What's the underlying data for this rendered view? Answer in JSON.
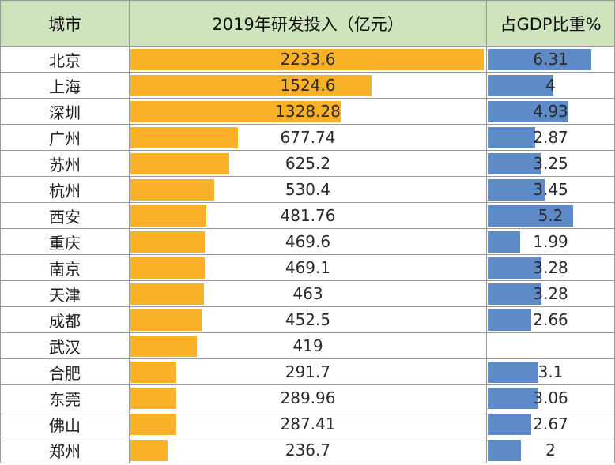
{
  "header": {
    "city": "城市",
    "rd": "2019年研发投入（亿元）",
    "gdp": "占GDP比重%"
  },
  "colors": {
    "header_bg": "#cfe3bd",
    "rd_bar": "#fbb127",
    "gdp_bar": "#5e8ac8"
  },
  "chart_data": {
    "type": "table",
    "columns": [
      "城市",
      "2019年研发投入（亿元）",
      "占GDP比重%"
    ],
    "rd_max": 2233.6,
    "gdp_max": 6.31,
    "rows": [
      {
        "city": "北京",
        "rd": "2233.6",
        "gdp": "6.31"
      },
      {
        "city": "上海",
        "rd": "1524.6",
        "gdp": "4"
      },
      {
        "city": "深圳",
        "rd": "1328.28",
        "gdp": "4.93"
      },
      {
        "city": "广州",
        "rd": "677.74",
        "gdp": "2.87"
      },
      {
        "city": "苏州",
        "rd": "625.2",
        "gdp": "3.25"
      },
      {
        "city": "杭州",
        "rd": "530.4",
        "gdp": "3.45"
      },
      {
        "city": "西安",
        "rd": "481.76",
        "gdp": "5.2"
      },
      {
        "city": "重庆",
        "rd": "469.6",
        "gdp": "1.99"
      },
      {
        "city": "南京",
        "rd": "469.1",
        "gdp": "3.28"
      },
      {
        "city": "天津",
        "rd": "463",
        "gdp": "3.28"
      },
      {
        "city": "成都",
        "rd": "452.5",
        "gdp": "2.66"
      },
      {
        "city": "武汉",
        "rd": "419",
        "gdp": ""
      },
      {
        "city": "合肥",
        "rd": "291.7",
        "gdp": "3.1"
      },
      {
        "city": "东莞",
        "rd": "289.96",
        "gdp": "3.06"
      },
      {
        "city": "佛山",
        "rd": "287.41",
        "gdp": "2.67"
      },
      {
        "city": "郑州",
        "rd": "236.7",
        "gdp": "2"
      }
    ]
  }
}
